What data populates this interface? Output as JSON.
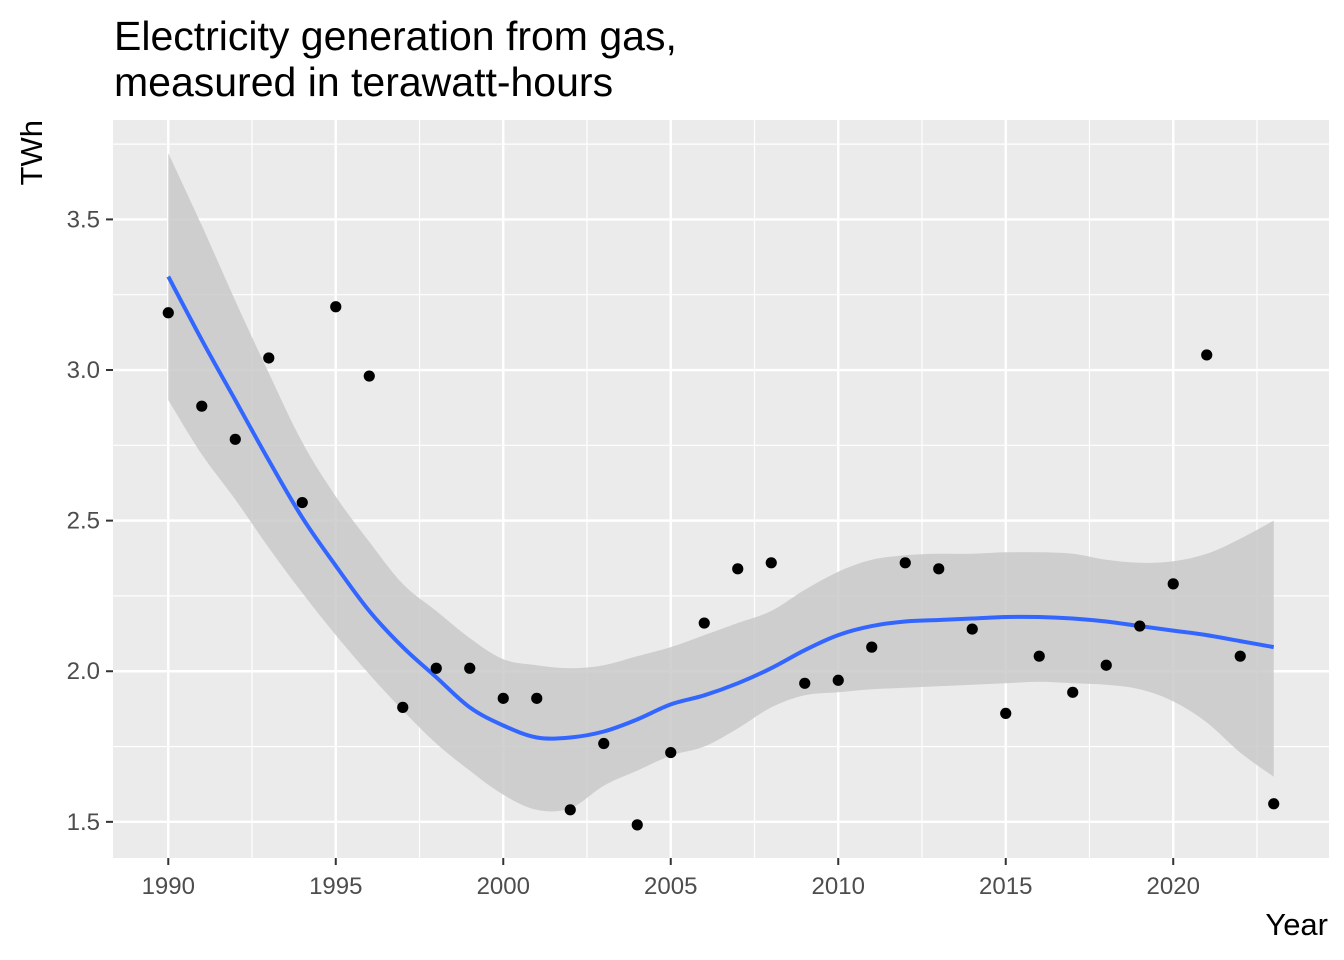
{
  "chart_data": {
    "type": "scatter",
    "title_lines": [
      "Electricity generation from gas,",
      "measured in terawatt-hours"
    ],
    "xlabel": "Year",
    "ylabel": "TWh",
    "xlim": [
      1988.35,
      2024.65
    ],
    "ylim": [
      1.38,
      3.83
    ],
    "x_ticks": [
      1990,
      1995,
      2000,
      2005,
      2010,
      2015,
      2020
    ],
    "x_tick_labels": [
      "1990",
      "1995",
      "2000",
      "2005",
      "2010",
      "2015",
      "2020"
    ],
    "y_ticks": [
      1.5,
      2.0,
      2.5,
      3.0,
      3.5
    ],
    "y_tick_labels": [
      "1.5",
      "2.0",
      "2.5",
      "3.0",
      "3.5"
    ],
    "grid": true,
    "points": {
      "x": [
        1990,
        1991,
        1992,
        1993,
        1994,
        1995,
        1996,
        1997,
        1998,
        1999,
        2000,
        2001,
        2002,
        2003,
        2004,
        2005,
        2006,
        2007,
        2008,
        2009,
        2010,
        2011,
        2012,
        2013,
        2014,
        2015,
        2016,
        2017,
        2018,
        2019,
        2020,
        2021,
        2022,
        2023
      ],
      "y": [
        3.19,
        2.88,
        2.77,
        3.04,
        2.56,
        3.21,
        2.98,
        1.88,
        2.01,
        2.01,
        1.91,
        1.91,
        1.54,
        1.76,
        1.49,
        1.73,
        2.16,
        2.34,
        2.36,
        1.96,
        1.97,
        2.08,
        2.36,
        2.34,
        2.14,
        1.86,
        2.05,
        1.93,
        2.02,
        2.15,
        2.29,
        3.05,
        2.05,
        1.56
      ]
    },
    "smooth": {
      "x": [
        1990,
        1991,
        1992,
        1993,
        1994,
        1995,
        1996,
        1997,
        1998,
        1999,
        2000,
        2001,
        2002,
        2003,
        2004,
        2005,
        2006,
        2007,
        2008,
        2009,
        2010,
        2011,
        2012,
        2013,
        2014,
        2015,
        2016,
        2017,
        2018,
        2019,
        2020,
        2021,
        2022,
        2023
      ],
      "y": [
        3.31,
        3.1,
        2.9,
        2.7,
        2.51,
        2.35,
        2.2,
        2.08,
        1.98,
        1.88,
        1.82,
        1.78,
        1.78,
        1.8,
        1.84,
        1.89,
        1.92,
        1.96,
        2.01,
        2.07,
        2.12,
        2.15,
        2.165,
        2.17,
        2.175,
        2.18,
        2.18,
        2.175,
        2.165,
        2.15,
        2.135,
        2.12,
        2.1,
        2.08
      ],
      "lower": [
        2.9,
        2.72,
        2.57,
        2.41,
        2.26,
        2.12,
        1.99,
        1.87,
        1.76,
        1.67,
        1.59,
        1.54,
        1.545,
        1.62,
        1.67,
        1.72,
        1.75,
        1.81,
        1.88,
        1.92,
        1.93,
        1.94,
        1.945,
        1.95,
        1.955,
        1.96,
        1.965,
        1.96,
        1.955,
        1.94,
        1.9,
        1.83,
        1.73,
        1.65
      ],
      "upper": [
        3.72,
        3.48,
        3.23,
        2.99,
        2.76,
        2.58,
        2.43,
        2.29,
        2.2,
        2.11,
        2.04,
        2.02,
        2.01,
        2.02,
        2.05,
        2.08,
        2.12,
        2.16,
        2.2,
        2.27,
        2.33,
        2.37,
        2.385,
        2.39,
        2.39,
        2.395,
        2.395,
        2.39,
        2.37,
        2.36,
        2.365,
        2.39,
        2.44,
        2.5
      ]
    },
    "colors": {
      "panel": "#ebebeb",
      "grid_major": "#ffffff",
      "point": "#000000",
      "smooth_line": "#3366ff",
      "ribbon": "#c9c9c9"
    }
  }
}
